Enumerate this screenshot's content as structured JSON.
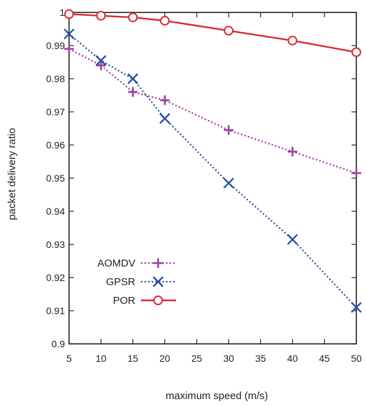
{
  "chart_data": {
    "type": "line",
    "title": "",
    "xlabel": "maximum speed (m/s)",
    "ylabel": "packet delivery ratio",
    "xlim": [
      5,
      50
    ],
    "ylim": [
      0.9,
      1
    ],
    "xticks": [
      5,
      10,
      15,
      20,
      25,
      30,
      35,
      40,
      45,
      50
    ],
    "yticks": [
      0.9,
      0.91,
      0.92,
      0.93,
      0.94,
      0.95,
      0.96,
      0.97,
      0.98,
      0.99,
      1
    ],
    "x": [
      5,
      10,
      15,
      20,
      30,
      40,
      50
    ],
    "grid": false,
    "legend_position": "bottom-left",
    "series": [
      {
        "name": "AOMDV",
        "marker": "plus",
        "line": "dotted",
        "color": "#9b3fa0",
        "values": [
          0.989,
          0.984,
          0.976,
          0.9735,
          0.9645,
          0.958,
          0.9515
        ]
      },
      {
        "name": "GPSR",
        "marker": "x",
        "line": "dotted",
        "color": "#2f4fa8",
        "values": [
          0.9935,
          0.9855,
          0.98,
          0.968,
          0.9485,
          0.9315,
          0.911
        ]
      },
      {
        "name": "POR",
        "marker": "circle",
        "line": "solid",
        "color": "#d62a30",
        "values": [
          0.9995,
          0.999,
          0.9985,
          0.9975,
          0.9945,
          0.9915,
          0.988
        ]
      }
    ]
  }
}
